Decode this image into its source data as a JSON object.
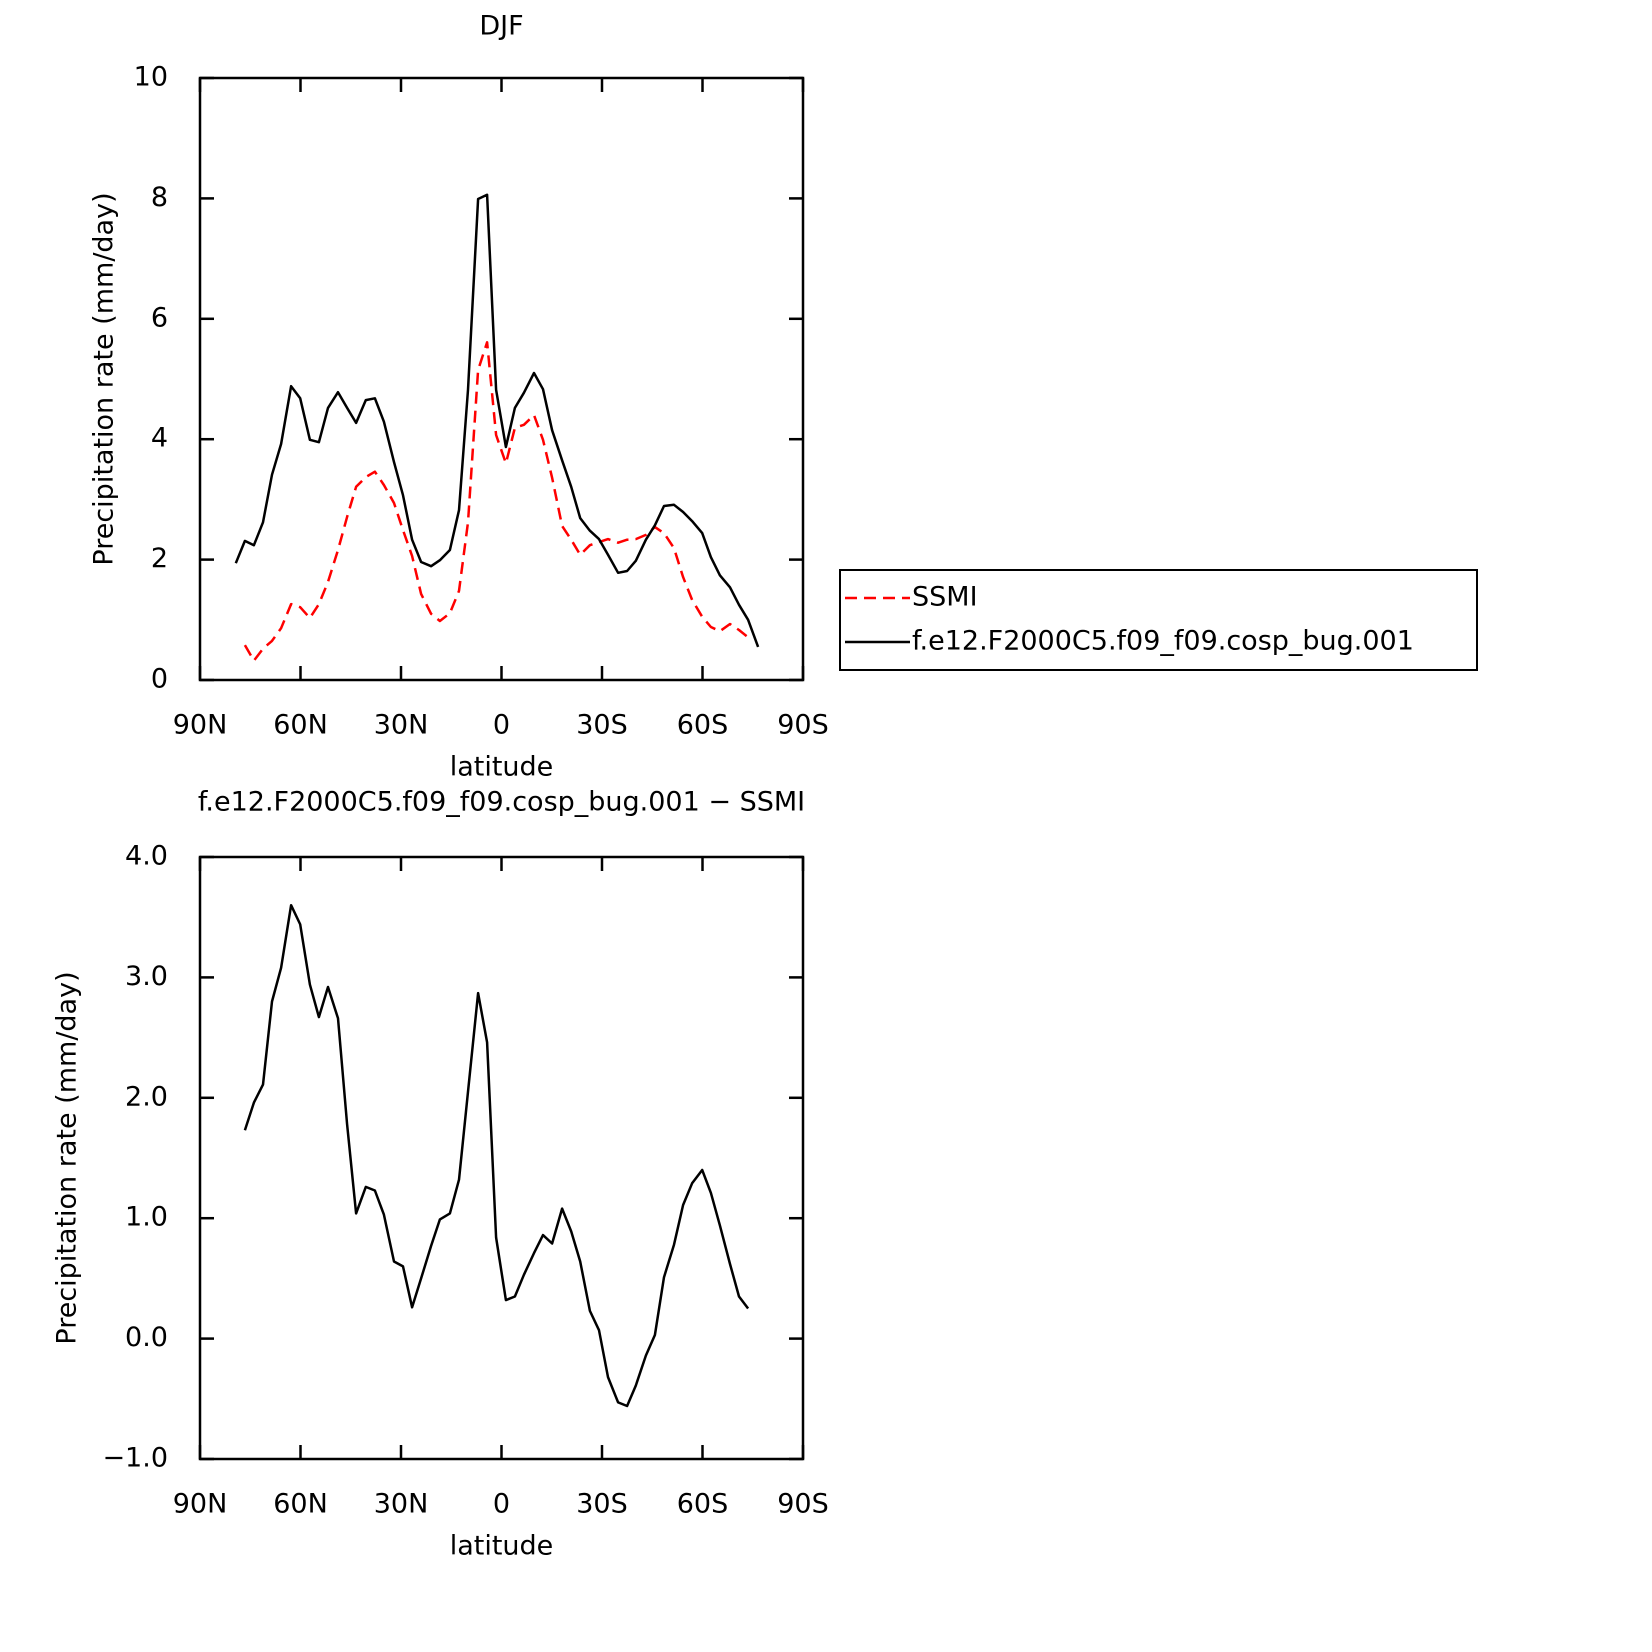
{
  "chart_data": [
    {
      "type": "line",
      "title": "DJF",
      "x_label": "latitude",
      "y_label": "Precipitation rate (mm/day)",
      "x": [
        79.3,
        76.6,
        73.9,
        71.2,
        68.5,
        65.8,
        62.8,
        60.1,
        57.2,
        54.5,
        51.8,
        48.8,
        46.1,
        43.4,
        40.5,
        37.8,
        35.1,
        32.1,
        29.4,
        26.7,
        24.0,
        21.0,
        18.4,
        15.4,
        12.7,
        10.0,
        7.0,
        4.3,
        1.6,
        -1.3,
        -4.0,
        -6.7,
        -9.7,
        -12.4,
        -15.1,
        -18.1,
        -20.8,
        -23.5,
        -26.4,
        -29.1,
        -31.8,
        -34.8,
        -37.5,
        -40.1,
        -43.1,
        -45.8,
        -48.5,
        -51.5,
        -54.2,
        -56.9,
        -59.9,
        -62.5,
        -65.2,
        -68.2,
        -70.9,
        -73.6,
        -76.6
      ],
      "series": [
        {
          "name": "SSMI",
          "color": "#ff0000",
          "line_style": "dashed",
          "values": [
            null,
            0.58,
            0.32,
            0.52,
            0.65,
            0.86,
            1.26,
            1.21,
            1.03,
            1.26,
            1.63,
            2.16,
            2.71,
            3.21,
            3.37,
            3.46,
            3.24,
            2.94,
            2.49,
            2.06,
            1.43,
            1.1,
            0.98,
            1.11,
            1.48,
            2.62,
            5.15,
            5.61,
            4.07,
            3.6,
            4.19,
            4.24,
            4.4,
            3.99,
            3.36,
            2.56,
            2.33,
            2.08,
            2.24,
            2.29,
            2.34,
            2.28,
            2.33,
            2.34,
            2.41,
            2.54,
            2.44,
            2.19,
            1.71,
            1.33,
            1.05,
            0.88,
            0.81,
            0.93,
            0.83,
            0.71,
            null
          ]
        },
        {
          "name": "f.e12.F2000C5.f09_f09.cosp_bug.001",
          "color": "#000000",
          "line_style": "solid",
          "values": [
            1.94,
            2.31,
            2.24,
            2.62,
            3.41,
            3.92,
            4.88,
            4.68,
            3.99,
            3.95,
            4.52,
            4.78,
            4.52,
            4.27,
            4.65,
            4.68,
            4.29,
            3.62,
            3.07,
            2.33,
            1.96,
            1.89,
            1.99,
            2.16,
            2.82,
            4.82,
            7.99,
            8.06,
            4.82,
            3.87,
            4.52,
            4.77,
            5.1,
            4.83,
            4.15,
            3.65,
            3.21,
            2.69,
            2.48,
            2.34,
            2.08,
            1.78,
            1.81,
            1.98,
            2.33,
            2.57,
            2.89,
            2.91,
            2.79,
            2.64,
            2.44,
            2.04,
            1.74,
            1.54,
            1.25,
            1.0,
            0.55
          ]
        }
      ],
      "xlim": [
        90,
        -90
      ],
      "xticks": [
        {
          "value": 90,
          "label": "90N"
        },
        {
          "value": 60,
          "label": "60N"
        },
        {
          "value": 30,
          "label": "30N"
        },
        0,
        {
          "value": -30,
          "label": "30S"
        },
        {
          "value": -60,
          "label": "60S"
        },
        {
          "value": -90,
          "label": "90S"
        }
      ],
      "ylim": [
        0,
        10
      ],
      "yticks": [
        0,
        2,
        4,
        6,
        8,
        10
      ],
      "legend": "right"
    },
    {
      "type": "line",
      "title": "f.e12.F2000C5.f09_f09.cosp_bug.001 − SSMI",
      "x_label": "latitude",
      "y_label": "Precipitation rate (mm/day)",
      "x": [
        76.6,
        73.9,
        71.2,
        68.5,
        65.8,
        62.8,
        60.1,
        57.2,
        54.5,
        51.8,
        48.8,
        46.1,
        43.4,
        40.5,
        37.8,
        35.1,
        32.1,
        29.4,
        26.7,
        24.0,
        21.0,
        18.4,
        15.4,
        12.7,
        10.0,
        7.0,
        4.3,
        1.6,
        -1.3,
        -4.0,
        -6.7,
        -9.7,
        -12.4,
        -15.1,
        -18.1,
        -20.8,
        -23.5,
        -26.4,
        -29.1,
        -31.8,
        -34.8,
        -37.5,
        -40.1,
        -43.1,
        -45.8,
        -48.5,
        -51.5,
        -54.2,
        -56.9,
        -59.9,
        -62.5,
        -65.2,
        -68.2,
        -70.9,
        -73.6
      ],
      "values": [
        1.73,
        1.96,
        2.11,
        2.8,
        3.08,
        3.6,
        3.44,
        2.94,
        2.67,
        2.92,
        2.66,
        1.78,
        1.04,
        1.26,
        1.23,
        1.03,
        0.64,
        0.6,
        0.26,
        0.5,
        0.77,
        0.99,
        1.04,
        1.32,
        2.05,
        2.87,
        2.46,
        0.84,
        0.32,
        0.35,
        0.53,
        0.71,
        0.86,
        0.79,
        1.08,
        0.89,
        0.64,
        0.23,
        0.07,
        -0.32,
        -0.53,
        -0.56,
        -0.39,
        -0.14,
        0.03,
        0.51,
        0.78,
        1.11,
        1.29,
        1.4,
        1.21,
        0.94,
        0.62,
        0.35,
        0.25
      ],
      "color": "#000000",
      "line_style": "solid",
      "xlim": [
        90,
        -90
      ],
      "xticks": [
        {
          "value": 90,
          "label": "90N"
        },
        {
          "value": 60,
          "label": "60N"
        },
        {
          "value": 30,
          "label": "30N"
        },
        0,
        {
          "value": -30,
          "label": "30S"
        },
        {
          "value": -60,
          "label": "60S"
        },
        {
          "value": -90,
          "label": "90S"
        }
      ],
      "ylim": [
        -1,
        4
      ],
      "yticks": [
        {
          "value": -1,
          "label": "−1.0"
        },
        {
          "value": 0,
          "label": "0.0"
        },
        {
          "value": 1,
          "label": "1.0"
        },
        {
          "value": 2,
          "label": "2.0"
        },
        {
          "value": 3,
          "label": "3.0"
        },
        {
          "value": 4,
          "label": "4.0"
        }
      ]
    }
  ]
}
